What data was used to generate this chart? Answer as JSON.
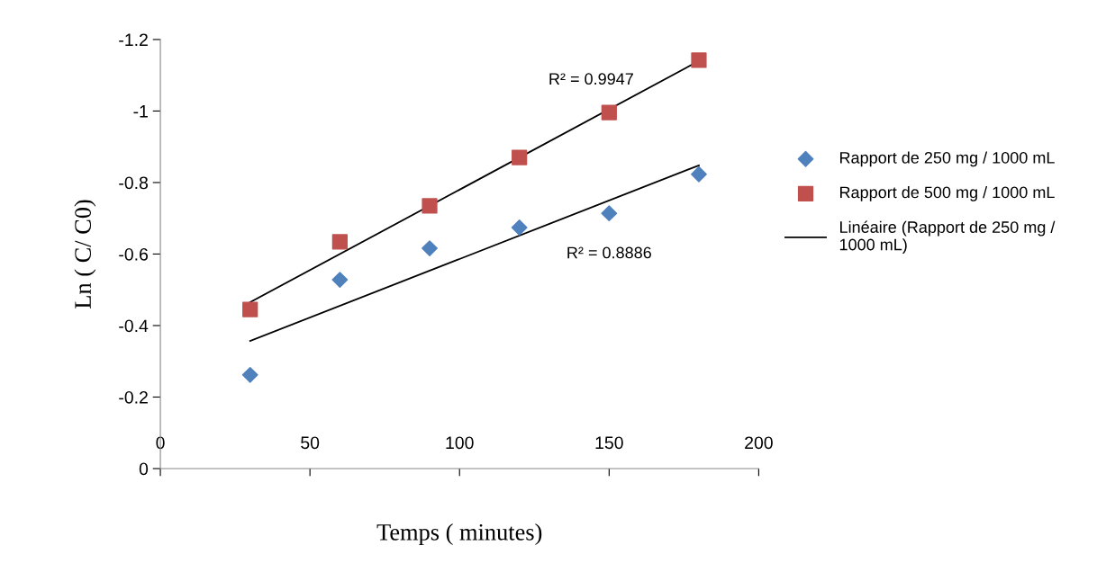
{
  "chart_data": {
    "type": "scatter",
    "xlabel": "Temps ( minutes)",
    "ylabel": "Ln ( C/ C0)",
    "xlim": [
      0,
      200
    ],
    "xticks": [
      0,
      50,
      100,
      150,
      200
    ],
    "ylim": [
      0,
      -1.2
    ],
    "yticks": [
      0,
      -0.2,
      -0.4,
      -0.6,
      -0.8,
      -1,
      -1.2
    ],
    "grid": false,
    "legend": "right",
    "series": [
      {
        "name": "Rapport de 250 mg / 1000 mL",
        "marker": "diamond",
        "color": "#4f81bd",
        "x": [
          30,
          60,
          90,
          120,
          150,
          180
        ],
        "values": [
          -0.262,
          -0.528,
          -0.616,
          -0.674,
          -0.714,
          -0.823
        ]
      },
      {
        "name": "Rapport de 500 mg / 1000 mL",
        "marker": "square",
        "color": "#c0504d",
        "x": [
          30,
          60,
          90,
          120,
          150,
          180
        ],
        "values": [
          -0.445,
          -0.634,
          -0.735,
          -0.87,
          -0.996,
          -1.142
        ]
      },
      {
        "name": "Linéaire (Rapport de 250 mg / 1000 mL)",
        "type": "line",
        "marker": "none",
        "color": "#000000",
        "x": [
          30,
          180
        ],
        "values": [
          -0.357,
          -0.848
        ]
      },
      {
        "type": "line",
        "marker": "none",
        "color": "#000000",
        "x": [
          30,
          180
        ],
        "values": [
          -0.465,
          -1.14
        ]
      }
    ],
    "annotations": [
      "R² = 0.9947",
      "R² = 0.8886"
    ]
  }
}
